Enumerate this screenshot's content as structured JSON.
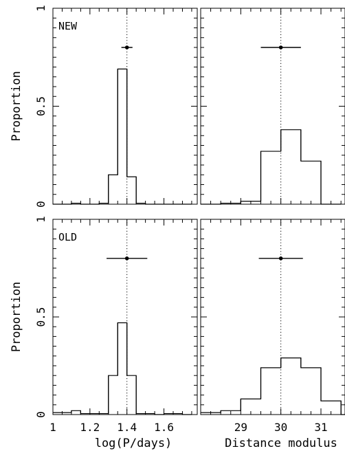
{
  "chart_data": [
    {
      "type": "histogram",
      "panel_label": "NEW",
      "xlabel": "",
      "ylabel": "Proportion",
      "xlim": [
        1.0,
        1.78
      ],
      "ylim": [
        0,
        1
      ],
      "xticks": [
        1.0,
        1.2,
        1.4,
        1.6
      ],
      "yticks": [
        0,
        0.5,
        1
      ],
      "ytick_labels": [
        "0",
        "0.5",
        "1"
      ],
      "bin_width": 0.05,
      "bin_edges_start": 1.0,
      "values": [
        0.0,
        0.0,
        0.005,
        0.0,
        0.0,
        0.005,
        0.15,
        0.69,
        0.14,
        0.005,
        0.0,
        0.0,
        0.0,
        0.0,
        0.0
      ],
      "reference_x": 1.4,
      "point": {
        "x": 1.4,
        "y": 0.8,
        "err_low": 0.03,
        "err_high": 0.03
      },
      "grid": false
    },
    {
      "type": "histogram",
      "panel_label": "",
      "xlabel": "",
      "ylabel": "",
      "xlim": [
        28.0,
        31.6
      ],
      "ylim": [
        0,
        1
      ],
      "xticks": [
        29,
        30,
        31
      ],
      "bin_width": 0.5,
      "bin_edges_start": 28.0,
      "values": [
        0.0,
        0.005,
        0.015,
        0.27,
        0.38,
        0.22,
        0.0
      ],
      "reference_x": 30.0,
      "point": {
        "x": 30.0,
        "y": 0.8,
        "err_low": 0.5,
        "err_high": 0.5
      },
      "grid": false
    },
    {
      "type": "histogram",
      "panel_label": "OLD",
      "xlabel": "log(P/days)",
      "ylabel": "Proportion",
      "xlim": [
        1.0,
        1.78
      ],
      "ylim": [
        0,
        1
      ],
      "xticks": [
        1.0,
        1.2,
        1.4,
        1.6
      ],
      "xtick_labels": [
        "1",
        "1.2",
        "1.4",
        "1.6"
      ],
      "yticks": [
        0,
        0.5,
        1
      ],
      "ytick_labels": [
        "0",
        "0.5",
        "1"
      ],
      "bin_width": 0.05,
      "bin_edges_start": 1.0,
      "values": [
        0.01,
        0.01,
        0.02,
        0.005,
        0.005,
        0.005,
        0.2,
        0.47,
        0.2,
        0.005,
        0.005,
        0.0,
        0.005,
        0.005,
        0.0
      ],
      "reference_x": 1.4,
      "point": {
        "x": 1.4,
        "y": 0.8,
        "err_low": 0.11,
        "err_high": 0.11
      },
      "grid": false
    },
    {
      "type": "histogram",
      "panel_label": "",
      "xlabel": "Distance modulus",
      "ylabel": "",
      "xlim": [
        28.0,
        31.6
      ],
      "ylim": [
        0,
        1
      ],
      "xticks": [
        29,
        30,
        31
      ],
      "xtick_labels": [
        "29",
        "30",
        "31"
      ],
      "bin_width": 0.5,
      "bin_edges_start": 28.0,
      "values": [
        0.01,
        0.02,
        0.08,
        0.24,
        0.29,
        0.24,
        0.07,
        0.0
      ],
      "reference_x": 30.0,
      "point": {
        "x": 30.0,
        "y": 0.8,
        "err_low": 0.55,
        "err_high": 0.55
      },
      "grid": false
    }
  ]
}
